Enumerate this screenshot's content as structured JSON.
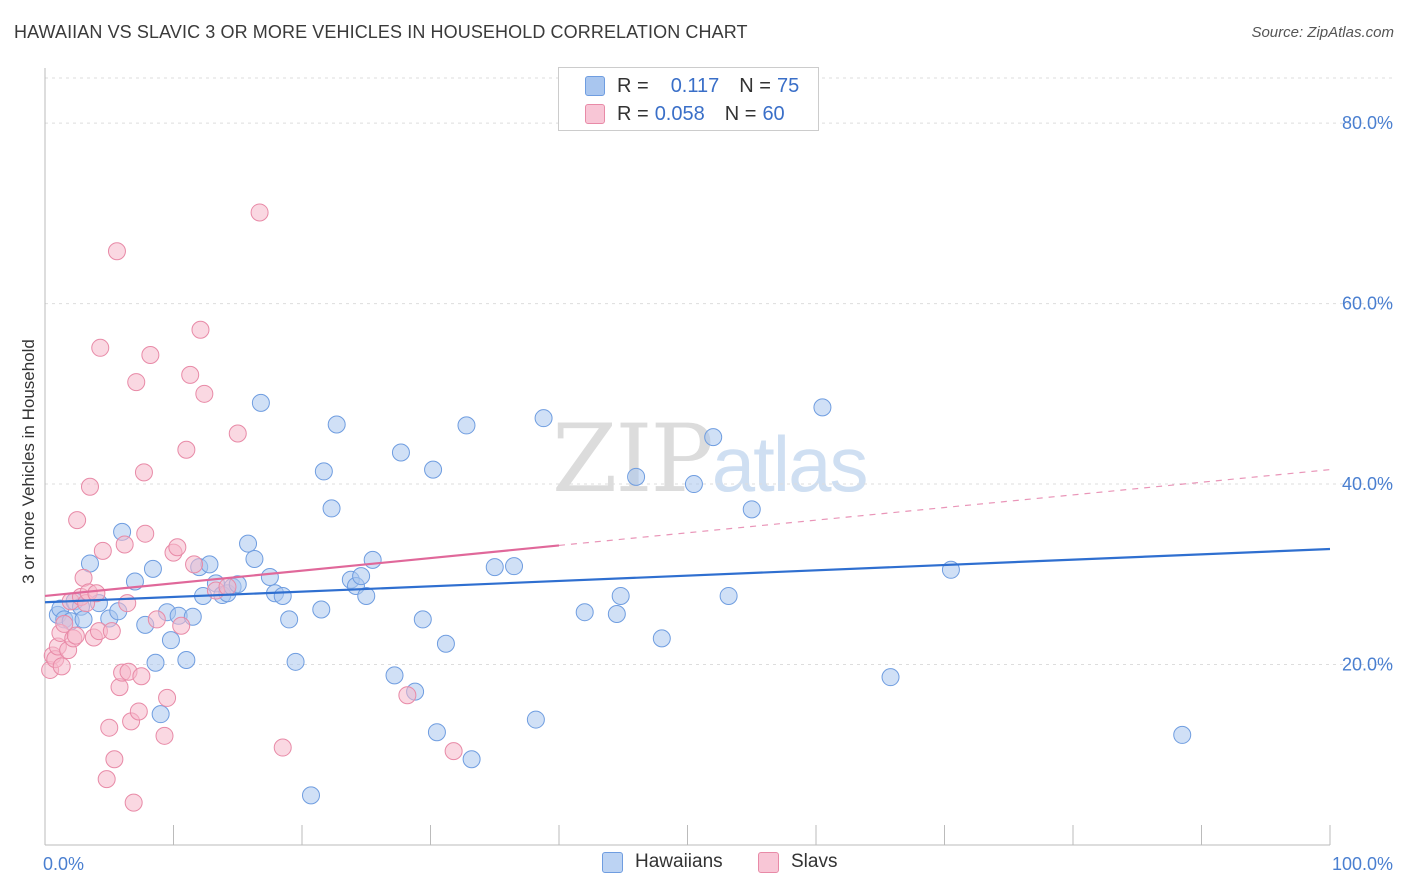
{
  "title": "HAWAIIAN VS SLAVIC 3 OR MORE VEHICLES IN HOUSEHOLD CORRELATION CHART",
  "source": "Source: ZipAtlas.com",
  "watermark": {
    "zip": "ZIP",
    "atlas": "atlas"
  },
  "legend": {
    "rows": [
      {
        "r_label": "R =",
        "r_value": "0.117",
        "n_label": "N =",
        "n_value": "75",
        "color": "#a9c6ef"
      },
      {
        "r_label": "R =",
        "r_value": "0.058",
        "n_label": "N =",
        "n_value": "60",
        "color": "#f5b8cb"
      }
    ]
  },
  "chart_data": {
    "type": "scatter",
    "title": "HAWAIIAN VS SLAVIC 3 OR MORE VEHICLES IN HOUSEHOLD CORRELATION CHART",
    "xlabel": "",
    "ylabel": "3 or more Vehicles in Household",
    "xlim": [
      0,
      100
    ],
    "ylim": [
      0,
      85
    ],
    "x_tick_labels": [
      "0.0%",
      "100.0%"
    ],
    "y_ticks": [
      20,
      40,
      60,
      80
    ],
    "y_tick_labels": [
      "20.0%",
      "40.0%",
      "60.0%",
      "80.0%"
    ],
    "grid": true,
    "legend_placement": "top-center",
    "series": [
      {
        "name": "Hawaiians",
        "color": "#a9c6ef",
        "stroke": "#6f9de0",
        "trend": {
          "x": [
            0,
            100
          ],
          "y": [
            26.9,
            32.8
          ],
          "color": "#2f6fd0"
        },
        "points": [
          [
            1.0,
            25.5
          ],
          [
            1.2,
            26.2
          ],
          [
            1.5,
            25.0
          ],
          [
            2.0,
            24.8
          ],
          [
            2.3,
            27.0
          ],
          [
            2.8,
            26.4
          ],
          [
            3.0,
            25.0
          ],
          [
            3.5,
            31.2
          ],
          [
            4.2,
            26.8
          ],
          [
            5.0,
            25.1
          ],
          [
            5.7,
            25.9
          ],
          [
            6.0,
            34.7
          ],
          [
            7.0,
            29.2
          ],
          [
            7.8,
            24.4
          ],
          [
            8.4,
            30.6
          ],
          [
            8.6,
            20.2
          ],
          [
            9.0,
            14.5
          ],
          [
            9.5,
            25.8
          ],
          [
            9.8,
            22.7
          ],
          [
            10.4,
            25.4
          ],
          [
            11.0,
            20.5
          ],
          [
            11.5,
            25.3
          ],
          [
            12.0,
            30.8
          ],
          [
            12.3,
            27.6
          ],
          [
            12.8,
            31.1
          ],
          [
            13.3,
            29.0
          ],
          [
            13.8,
            27.7
          ],
          [
            14.2,
            27.9
          ],
          [
            14.6,
            28.6
          ],
          [
            15.0,
            28.9
          ],
          [
            15.8,
            33.4
          ],
          [
            16.3,
            31.7
          ],
          [
            16.8,
            49.0
          ],
          [
            17.5,
            29.7
          ],
          [
            17.9,
            27.9
          ],
          [
            18.5,
            27.6
          ],
          [
            19.0,
            25.0
          ],
          [
            19.5,
            20.3
          ],
          [
            20.7,
            5.5
          ],
          [
            21.5,
            26.1
          ],
          [
            21.7,
            41.4
          ],
          [
            22.3,
            37.3
          ],
          [
            22.7,
            46.6
          ],
          [
            23.8,
            29.4
          ],
          [
            24.2,
            28.7
          ],
          [
            24.6,
            29.8
          ],
          [
            25.0,
            27.6
          ],
          [
            25.5,
            31.6
          ],
          [
            27.2,
            18.8
          ],
          [
            27.7,
            43.5
          ],
          [
            28.8,
            17.0
          ],
          [
            29.4,
            25.0
          ],
          [
            30.2,
            41.6
          ],
          [
            30.5,
            12.5
          ],
          [
            31.2,
            22.3
          ],
          [
            32.8,
            46.5
          ],
          [
            33.2,
            9.5
          ],
          [
            35.0,
            30.8
          ],
          [
            36.5,
            30.9
          ],
          [
            38.2,
            13.9
          ],
          [
            38.8,
            47.3
          ],
          [
            42.0,
            25.8
          ],
          [
            44.5,
            25.6
          ],
          [
            44.8,
            27.6
          ],
          [
            46.0,
            40.8
          ],
          [
            48.0,
            22.9
          ],
          [
            50.5,
            40.0
          ],
          [
            52.0,
            45.2
          ],
          [
            53.2,
            27.6
          ],
          [
            55.0,
            37.2
          ],
          [
            60.5,
            48.5
          ],
          [
            65.8,
            18.6
          ],
          [
            70.5,
            30.5
          ],
          [
            88.5,
            12.2
          ]
        ]
      },
      {
        "name": "Slavs",
        "color": "#f5b8cb",
        "stroke": "#e88aa7",
        "trend": {
          "x": [
            0,
            40
          ],
          "y": [
            27.6,
            33.2
          ],
          "dashed_to": [
            100,
            41.6
          ],
          "color": "#e0689a"
        },
        "points": [
          [
            0.4,
            19.4
          ],
          [
            0.6,
            21.0
          ],
          [
            0.8,
            20.6
          ],
          [
            1.0,
            22.0
          ],
          [
            1.2,
            23.5
          ],
          [
            1.3,
            19.8
          ],
          [
            1.5,
            24.5
          ],
          [
            1.8,
            21.6
          ],
          [
            2.0,
            27.0
          ],
          [
            2.2,
            22.9
          ],
          [
            2.4,
            23.2
          ],
          [
            2.5,
            36.0
          ],
          [
            2.8,
            27.5
          ],
          [
            3.0,
            29.6
          ],
          [
            3.2,
            26.8
          ],
          [
            3.4,
            28.0
          ],
          [
            3.5,
            39.7
          ],
          [
            3.8,
            23.0
          ],
          [
            4.0,
            27.9
          ],
          [
            4.2,
            23.7
          ],
          [
            4.3,
            55.1
          ],
          [
            4.5,
            32.6
          ],
          [
            4.8,
            7.3
          ],
          [
            5.0,
            13.0
          ],
          [
            5.2,
            23.7
          ],
          [
            5.4,
            9.5
          ],
          [
            5.6,
            65.8
          ],
          [
            5.8,
            17.5
          ],
          [
            6.0,
            19.1
          ],
          [
            6.2,
            33.3
          ],
          [
            6.4,
            26.8
          ],
          [
            6.5,
            19.2
          ],
          [
            6.7,
            13.7
          ],
          [
            6.9,
            4.7
          ],
          [
            7.1,
            51.3
          ],
          [
            7.3,
            14.8
          ],
          [
            7.5,
            18.7
          ],
          [
            7.7,
            41.3
          ],
          [
            7.8,
            34.5
          ],
          [
            8.2,
            54.3
          ],
          [
            8.7,
            25.0
          ],
          [
            9.3,
            12.1
          ],
          [
            9.5,
            16.3
          ],
          [
            10.0,
            32.4
          ],
          [
            10.3,
            33.0
          ],
          [
            10.6,
            24.3
          ],
          [
            11.0,
            43.8
          ],
          [
            11.3,
            52.1
          ],
          [
            11.6,
            31.1
          ],
          [
            12.1,
            57.1
          ],
          [
            12.4,
            50.0
          ],
          [
            13.3,
            28.2
          ],
          [
            14.2,
            28.6
          ],
          [
            15.0,
            45.6
          ],
          [
            16.7,
            70.1
          ],
          [
            18.5,
            10.8
          ],
          [
            28.2,
            16.6
          ],
          [
            31.8,
            10.4
          ]
        ]
      }
    ]
  }
}
